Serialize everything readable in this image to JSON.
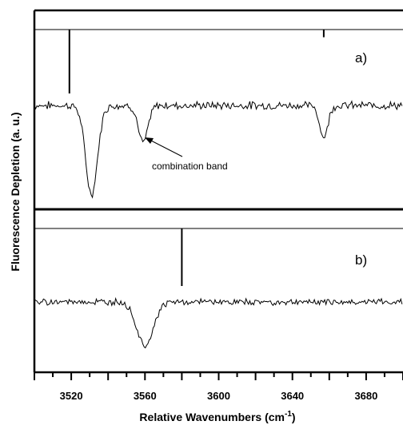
{
  "chart_data": {
    "type": "line",
    "xlabel": "Relative Wavenumbers (cm",
    "xlabel_sup": "-1",
    "xlabel_close": ")",
    "ylabel": "Fluorescence Depletion (a. u.)",
    "xlim": [
      3500,
      3700
    ],
    "xticks": [
      3520,
      3560,
      3600,
      3640,
      3680
    ],
    "minor_tick_step": 10,
    "panels": [
      {
        "label": "a)",
        "stick_lines": [
          {
            "x": 3519,
            "height": 1.0
          },
          {
            "x": 3657,
            "height": 0.12
          }
        ],
        "spectrum": {
          "baseline": 0,
          "noise": 0.035,
          "bands": [
            {
              "center": 3531,
              "depth": 1.0,
              "width": 3.2
            },
            {
              "center": 3559,
              "depth": 0.42,
              "width": 2.6
            },
            {
              "center": 3657,
              "depth": 0.36,
              "width": 2.2
            }
          ]
        },
        "annotation": {
          "text": "combination band",
          "x": 3559
        }
      },
      {
        "label": "b)",
        "stick_lines": [
          {
            "x": 3580,
            "height": 1.0
          }
        ],
        "spectrum": {
          "baseline": 0,
          "noise": 0.035,
          "bands": [
            {
              "center": 3560,
              "depth": 0.6,
              "width": 4.5
            }
          ]
        }
      }
    ]
  }
}
